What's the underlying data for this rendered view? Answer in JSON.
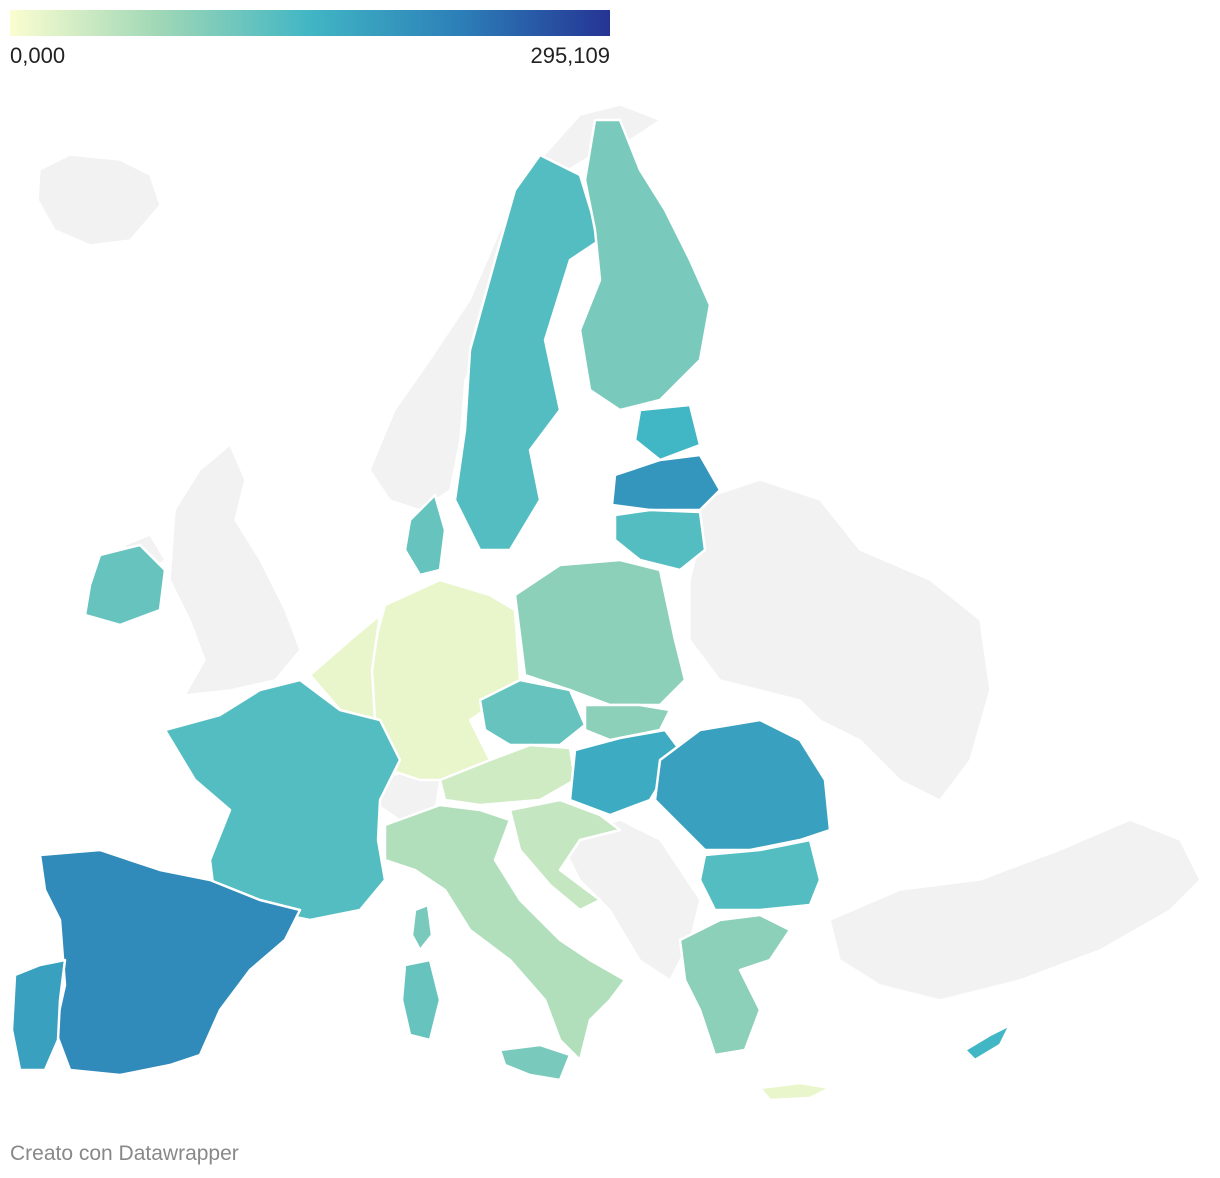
{
  "legend": {
    "min_label": "0,000",
    "max_label": "295,109",
    "color_low": "#fbfdd0",
    "color_mid1": "#9fd7b6",
    "color_mid2": "#41b6c4",
    "color_mid3": "#2c7fb8",
    "color_high": "#253494"
  },
  "map": {
    "background_country_color": "#f2f2f2",
    "border_color": "#ffffff",
    "regions": [
      {
        "name": "Sweden",
        "level": 0.45
      },
      {
        "name": "Finland",
        "level": 0.35
      },
      {
        "name": "Estonia",
        "level": 0.5
      },
      {
        "name": "Latvia",
        "level": 0.65
      },
      {
        "name": "Lithuania",
        "level": 0.45
      },
      {
        "name": "Poland",
        "level": 0.3
      },
      {
        "name": "Germany",
        "level": 0.05
      },
      {
        "name": "Benelux",
        "level": 0.05
      },
      {
        "name": "Denmark",
        "level": 0.4
      },
      {
        "name": "Czechia",
        "level": 0.4
      },
      {
        "name": "Slovakia",
        "level": 0.3
      },
      {
        "name": "Austria",
        "level": 0.12
      },
      {
        "name": "Hungary",
        "level": 0.55
      },
      {
        "name": "Romania",
        "level": 0.6
      },
      {
        "name": "Bulgaria",
        "level": 0.45
      },
      {
        "name": "Greece",
        "level": 0.3
      },
      {
        "name": "Italy",
        "level": 0.2
      },
      {
        "name": "France",
        "level": 0.45
      },
      {
        "name": "Spain",
        "level": 0.7
      },
      {
        "name": "Portugal",
        "level": 0.6
      },
      {
        "name": "Ireland",
        "level": 0.4
      },
      {
        "name": "Croatia/Slovenia",
        "level": 0.15
      },
      {
        "name": "Cyprus",
        "level": 0.5
      },
      {
        "name": "Sardinia",
        "level": 0.4
      },
      {
        "name": "Corsica",
        "level": 0.35
      },
      {
        "name": "Sicily",
        "level": 0.35
      },
      {
        "name": "Crete",
        "level": 0.05
      }
    ]
  },
  "footer": {
    "credit": "Creato con Datawrapper"
  }
}
